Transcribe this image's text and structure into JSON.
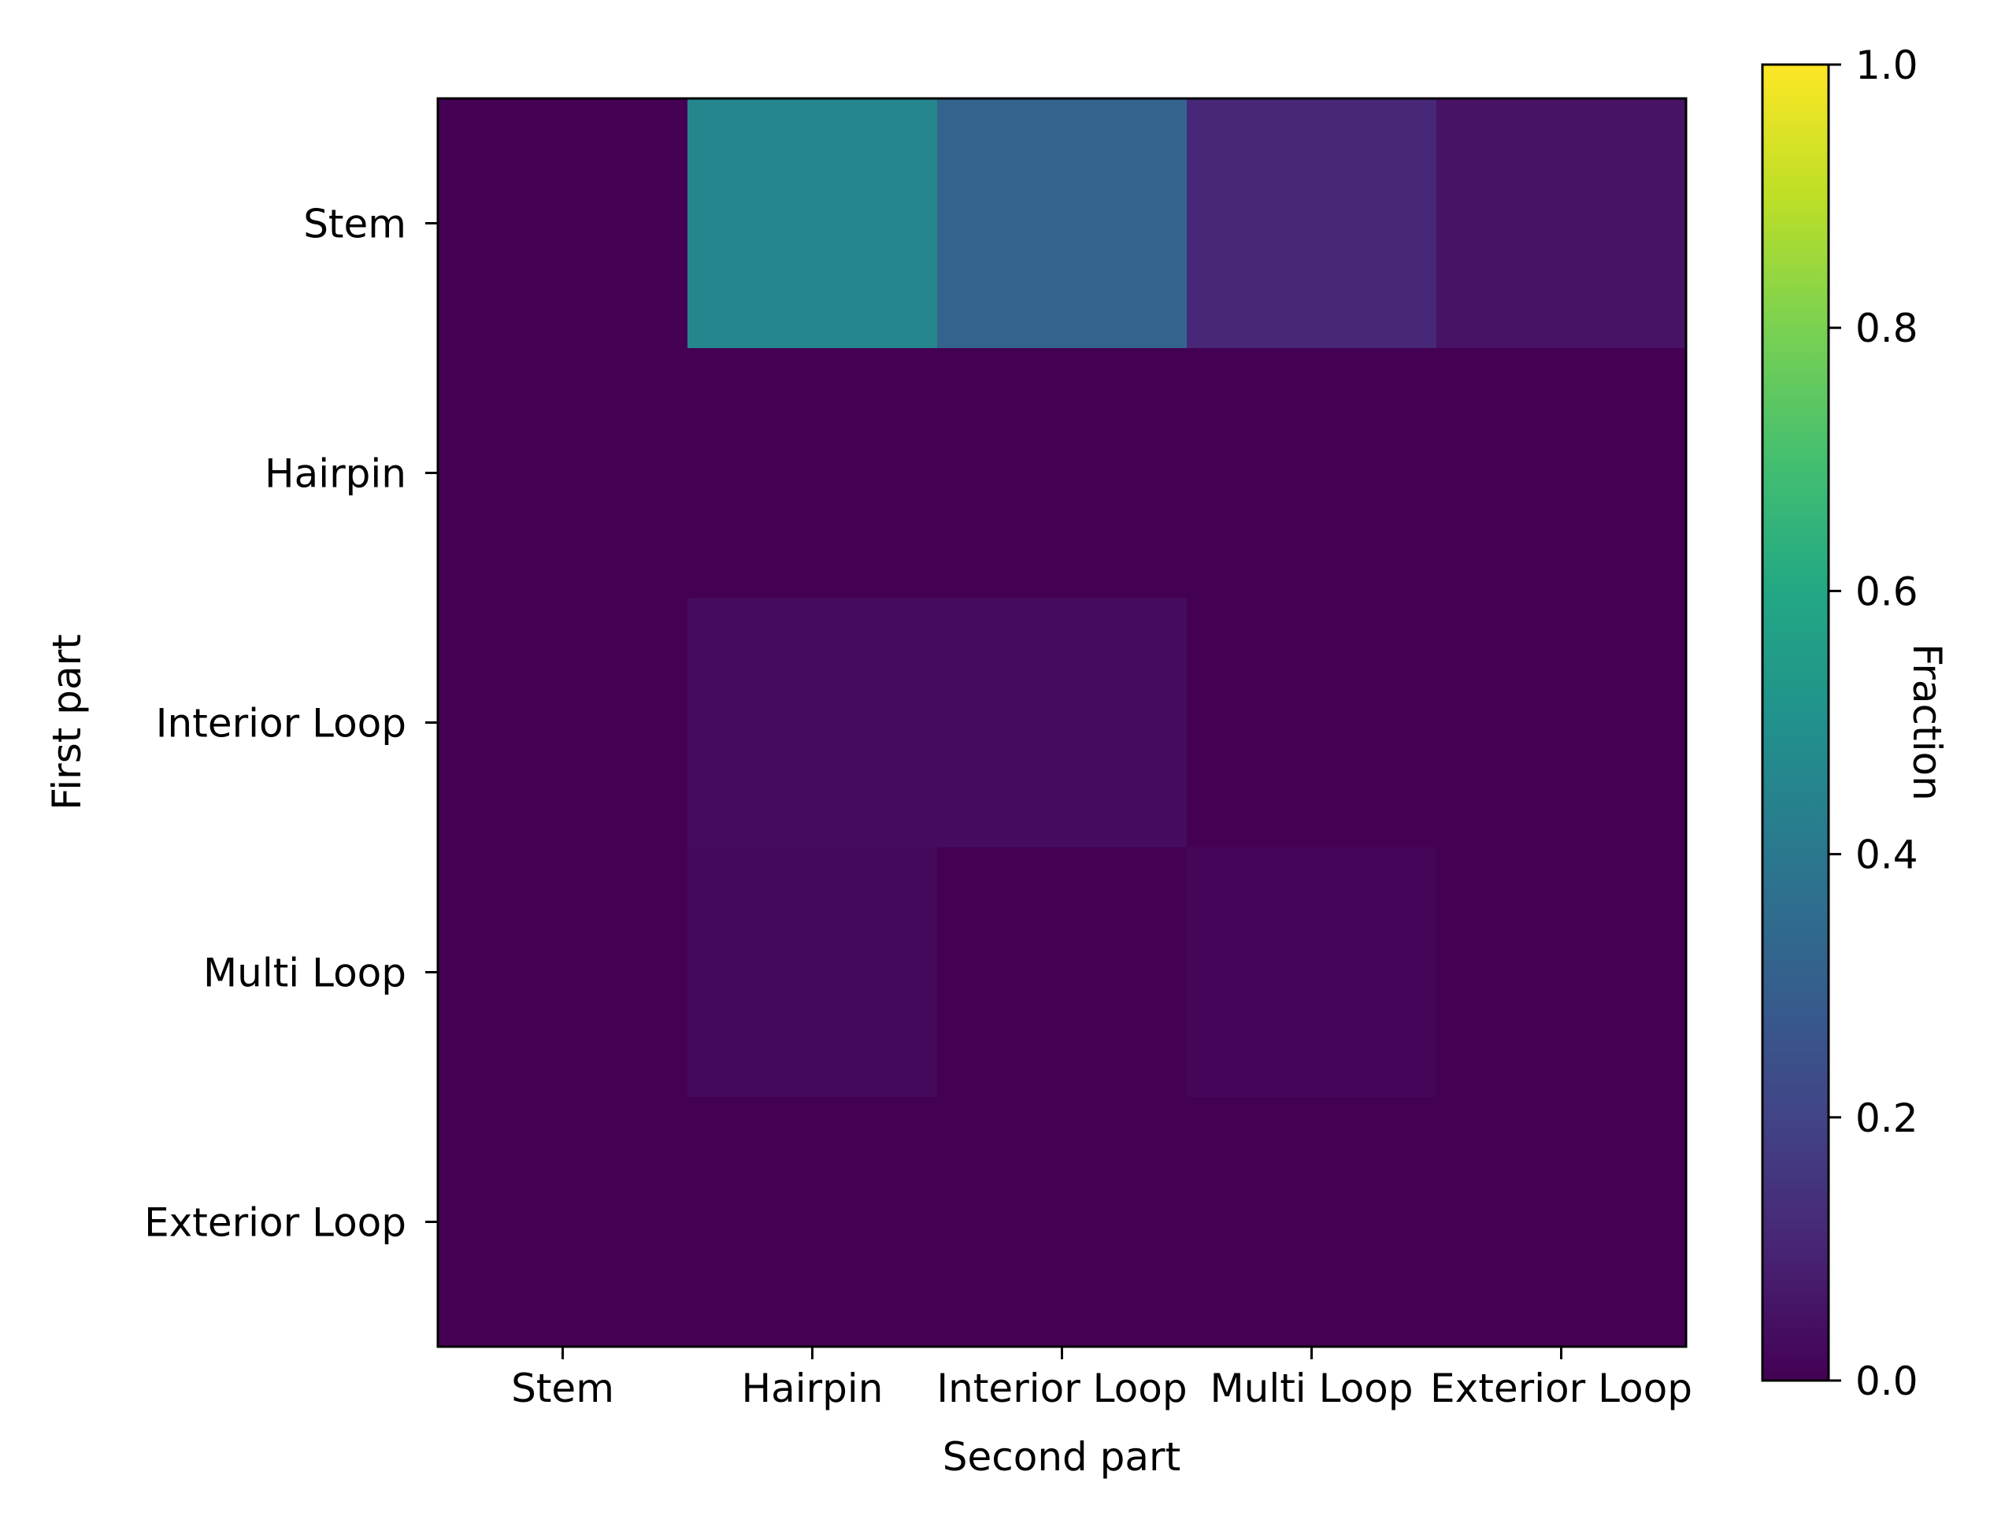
{
  "chart_data": {
    "type": "heatmap",
    "title": "",
    "xlabel": "Second part",
    "ylabel": "First part",
    "x_categories": [
      "Stem",
      "Hairpin",
      "Interior Loop",
      "Multi Loop",
      "Exterior Loop"
    ],
    "y_categories": [
      "Stem",
      "Hairpin",
      "Interior Loop",
      "Multi Loop",
      "Exterior Loop"
    ],
    "values": [
      [
        0.0,
        0.46,
        0.32,
        0.11,
        0.05
      ],
      [
        0.0,
        0.0,
        0.0,
        0.0,
        0.0
      ],
      [
        0.0,
        0.03,
        0.03,
        0.0,
        0.0
      ],
      [
        0.0,
        0.02,
        0.0,
        0.015,
        0.0
      ],
      [
        0.0,
        0.0,
        0.0,
        0.0,
        0.0
      ]
    ],
    "colormap": "viridis",
    "colorbar": {
      "label": "Fraction",
      "range": [
        0.0,
        1.0
      ],
      "ticks": [
        "0.0",
        "0.2",
        "0.4",
        "0.6",
        "0.8",
        "1.0"
      ]
    },
    "grid": false
  }
}
